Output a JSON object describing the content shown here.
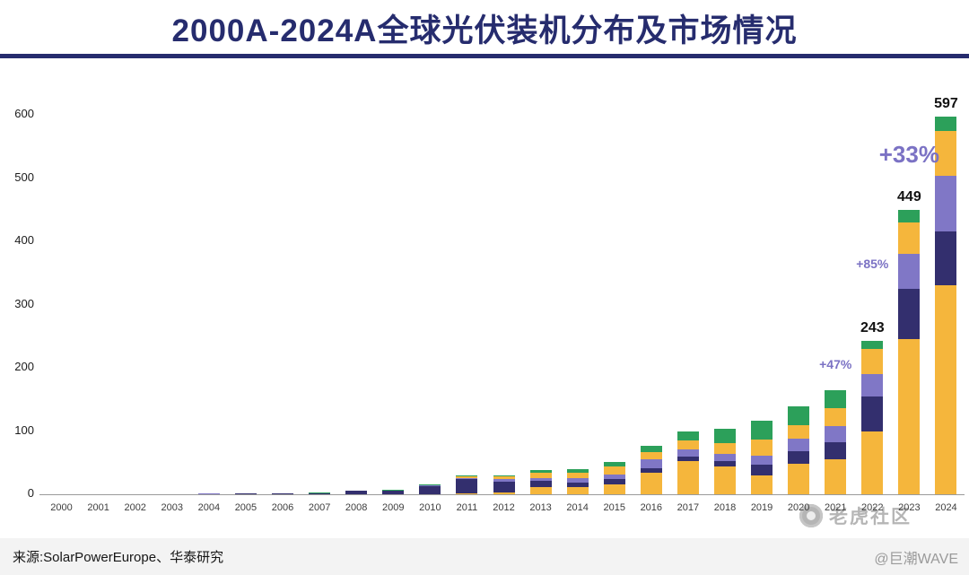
{
  "title": "2000A-2024A全球光伏装机分布及市场情况",
  "source": "来源:SolarPowerEurope、华泰研究",
  "watermarks": {
    "tiger": "老虎社区",
    "wave": "@巨潮WAVE"
  },
  "colors": {
    "title": "#262c6e",
    "divider": "#262c6e",
    "annotation": "#7b72c4",
    "gold": "#F5B63C",
    "navy": "#332F6E",
    "purple": "#8077C6",
    "green": "#2CA05A"
  },
  "chart_data": {
    "type": "bar",
    "stacked": true,
    "title": "2000A-2024A全球光伏装机分布及市场情况",
    "xlabel": "",
    "ylabel": "",
    "ylim": [
      0,
      600
    ],
    "yticks": [
      0,
      100,
      200,
      300,
      400,
      500,
      600
    ],
    "grid": false,
    "legend": "none",
    "categories": [
      "2000",
      "2001",
      "2002",
      "2003",
      "2004",
      "2005",
      "2006",
      "2007",
      "2008",
      "2009",
      "2010",
      "2011",
      "2012",
      "2013",
      "2014",
      "2015",
      "2016",
      "2017",
      "2018",
      "2019",
      "2020",
      "2021",
      "2022",
      "2023",
      "2024"
    ],
    "series": [
      {
        "name": "gold-bottom",
        "color": "#F5B63C",
        "values": [
          0,
          0,
          0,
          0,
          0,
          0,
          0,
          0,
          0.1,
          0.2,
          0.5,
          2,
          3.5,
          11,
          11,
          15,
          34,
          53,
          44,
          30,
          48,
          55,
          100,
          245,
          330
        ]
      },
      {
        "name": "navy",
        "color": "#332F6E",
        "values": [
          0.1,
          0.1,
          0.2,
          0.3,
          0.7,
          1,
          1.1,
          1.8,
          5.3,
          5.5,
          13,
          22,
          17,
          10,
          8,
          9,
          7,
          7,
          9,
          17,
          20,
          27,
          55,
          80,
          85
        ]
      },
      {
        "name": "purple",
        "color": "#8077C6",
        "values": [
          0,
          0.1,
          0.1,
          0.1,
          0.1,
          0.1,
          0.1,
          0.2,
          0.3,
          0.5,
          1,
          2,
          3.3,
          4.8,
          6.5,
          7.5,
          14.5,
          11,
          11,
          13.5,
          19.5,
          26,
          35,
          55,
          88
        ]
      },
      {
        "name": "gold-upper",
        "color": "#F5B63C",
        "values": [
          0,
          0,
          0,
          0,
          0,
          0,
          0,
          0,
          0.1,
          0.2,
          0.2,
          2.5,
          4,
          8,
          9,
          13,
          11,
          14,
          17,
          26,
          22,
          28,
          40,
          50,
          72
        ]
      },
      {
        "name": "green-top",
        "color": "#2CA05A",
        "values": [
          0.1,
          0.1,
          0.1,
          0.1,
          0.2,
          0.2,
          0.3,
          0.4,
          0.5,
          0.8,
          1.5,
          1.5,
          2.2,
          4.2,
          5.5,
          6.5,
          9.5,
          14,
          23,
          30.5,
          29.5,
          29,
          13,
          19,
          22
        ]
      }
    ],
    "total_labels": [
      {
        "category": "2022",
        "text": "243"
      },
      {
        "category": "2023",
        "text": "449"
      },
      {
        "category": "2024",
        "text": "597"
      }
    ],
    "growth_annotations": [
      {
        "category": "2021",
        "text": "+47%",
        "value": 207,
        "size": 14
      },
      {
        "category": "2022",
        "text": "+85%",
        "value": 366,
        "size": 14
      },
      {
        "category": "2023",
        "text": "+33%",
        "value": 540,
        "size": 26
      }
    ]
  }
}
